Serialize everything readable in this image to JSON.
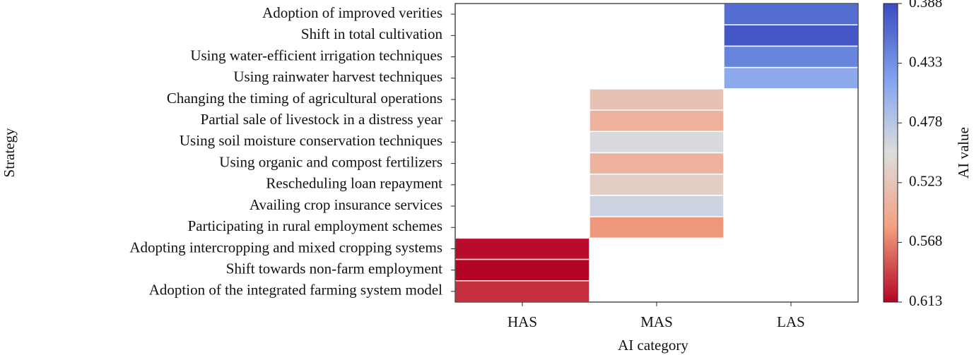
{
  "chart_data": {
    "type": "heatmap",
    "title": "",
    "xlabel": "AI category",
    "ylabel": "Strategy",
    "categories": [
      "HAS",
      "MAS",
      "LAS"
    ],
    "colorbar": {
      "label": "AI value",
      "vmin": 0.388,
      "vmax": 0.613,
      "ticks": [
        "0.388",
        "0.433",
        "0.478",
        "0.523",
        "0.568",
        "0.613"
      ],
      "colormap": "coolwarm_reversed",
      "colors": {
        "low": "#3b4cc0",
        "mid": "#dddddd",
        "high": "#b40426"
      }
    },
    "rows": [
      {
        "strategy": "Adoption of improved verities",
        "category": "LAS",
        "value": 0.41
      },
      {
        "strategy": "Shift in total cultivation",
        "category": "LAS",
        "value": 0.395
      },
      {
        "strategy": "Using water-efficient irrigation techniques",
        "category": "LAS",
        "value": 0.425
      },
      {
        "strategy": "Using rainwater harvest techniques",
        "category": "LAS",
        "value": 0.452
      },
      {
        "strategy": "Changing the timing of agricultural operations",
        "category": "MAS",
        "value": 0.525
      },
      {
        "strategy": "Partial sale of livestock in a distress year",
        "category": "MAS",
        "value": 0.54
      },
      {
        "strategy": "Using soil moisture conservation techniques",
        "category": "MAS",
        "value": 0.497
      },
      {
        "strategy": "Using organic and compost fertilizers",
        "category": "MAS",
        "value": 0.54
      },
      {
        "strategy": "Rescheduling loan repayment",
        "category": "MAS",
        "value": 0.515
      },
      {
        "strategy": "Availing crop insurance services",
        "category": "MAS",
        "value": 0.49
      },
      {
        "strategy": "Participating in rural employment schemes",
        "category": "MAS",
        "value": 0.56
      },
      {
        "strategy": "Adopting intercropping and mixed cropping systems",
        "category": "HAS",
        "value": 0.61
      },
      {
        "strategy": "Shift towards non-farm employment",
        "category": "HAS",
        "value": 0.613
      },
      {
        "strategy": "Adoption of the integrated farming system model",
        "category": "HAS",
        "value": 0.598
      }
    ]
  }
}
